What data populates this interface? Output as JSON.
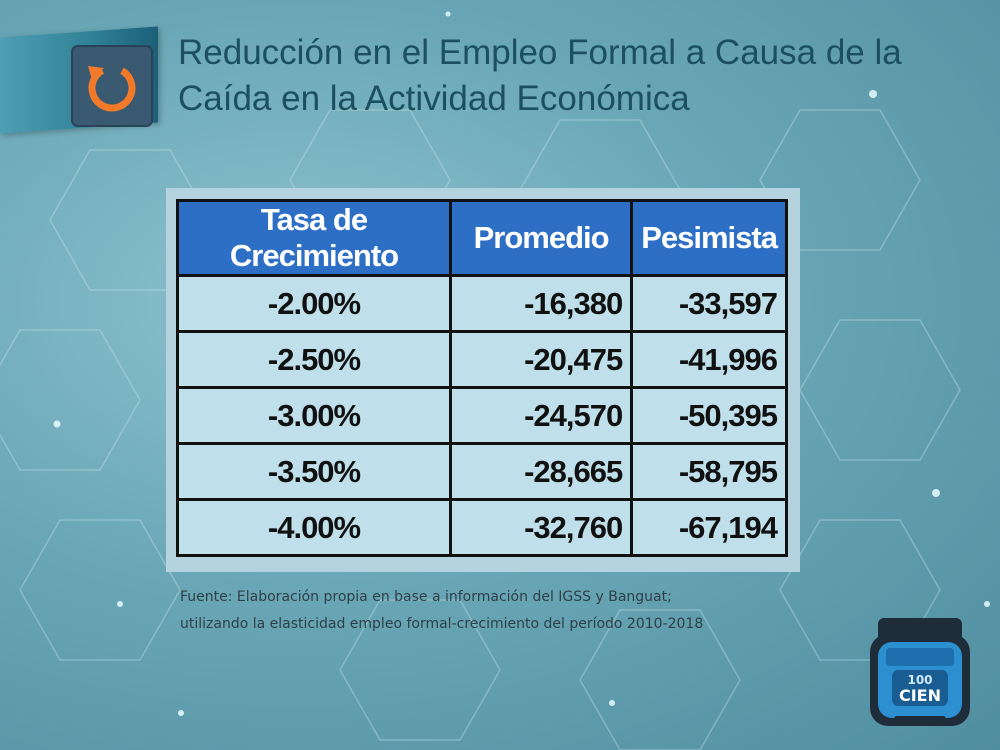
{
  "slide": {
    "title_line1": "Reducción en el Empleo Formal a Causa de la",
    "title_line2": "Caída en la Actividad Económica",
    "title_icon": "refresh-arrow-icon",
    "accent_color": "#f07a2a"
  },
  "table": {
    "headers": [
      "Tasa de Crecimiento",
      "Promedio",
      "Pesimista"
    ],
    "rows": [
      {
        "rate": "-2.00%",
        "promedio": "-16,380",
        "pesimista": "-33,597"
      },
      {
        "rate": "-2.50%",
        "promedio": "-20,475",
        "pesimista": "-41,996"
      },
      {
        "rate": "-3.00%",
        "promedio": "-24,570",
        "pesimista": "-50,395"
      },
      {
        "rate": "-3.50%",
        "promedio": "-28,665",
        "pesimista": "-58,795"
      },
      {
        "rate": "-4.00%",
        "promedio": "-32,760",
        "pesimista": "-67,194"
      }
    ],
    "header_color": "#2e6fc6",
    "cell_color": "#bfe0ea"
  },
  "source": {
    "line1": "Fuente: Elaboración propia en base a información del IGSS y Banguat;",
    "line2": "utilizando la elasticidad empleo formal-crecimiento del período 2010-2018"
  },
  "logo": {
    "text_top": "100",
    "text_main": "CIEN",
    "icon": "cien-100-badge-icon"
  }
}
